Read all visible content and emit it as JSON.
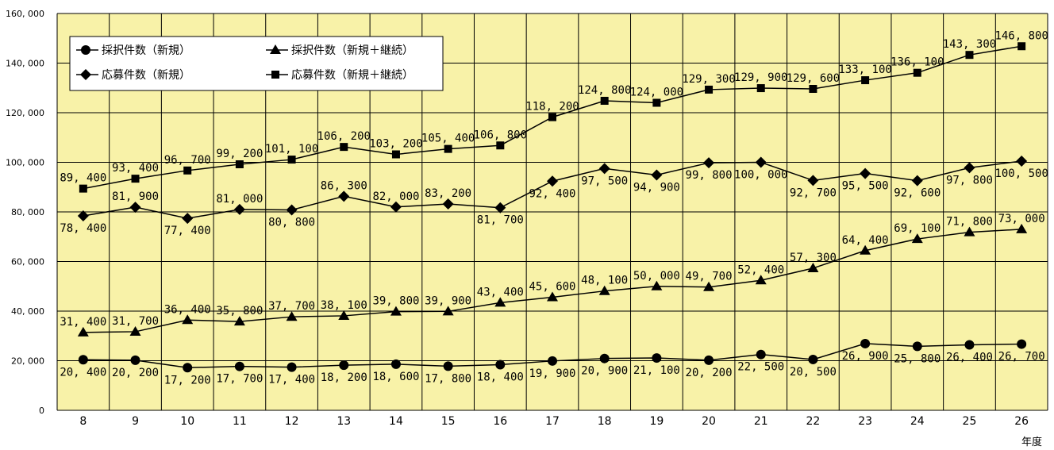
{
  "chart_data": {
    "type": "line",
    "xlabel": "年度",
    "ylabel": "",
    "title": "",
    "ylim": [
      0,
      160000
    ],
    "yticks": [
      "0",
      "20, 000",
      "40, 000",
      "60, 000",
      "80, 000",
      "100, 000",
      "120, 000",
      "140, 000",
      "160, 000"
    ],
    "categories": [
      "8",
      "9",
      "10",
      "11",
      "12",
      "13",
      "14",
      "15",
      "16",
      "17",
      "18",
      "19",
      "20",
      "21",
      "22",
      "23",
      "24",
      "25",
      "26"
    ],
    "grid": true,
    "legend_position": "top-left",
    "colors": {
      "plot_background": "#F8F2A8",
      "grid": "#000000",
      "line": "#000000"
    },
    "series": [
      {
        "name": "採択件数（新規）",
        "marker": "circle",
        "values": [
          20400,
          20200,
          17200,
          17700,
          17400,
          18200,
          18600,
          17800,
          18400,
          19900,
          20900,
          21100,
          20200,
          22500,
          20500,
          26900,
          25800,
          26400,
          26700
        ],
        "labels": [
          "20, 400",
          "20, 200",
          "17, 200",
          "17, 700",
          "17, 400",
          "18, 200",
          "18, 600",
          "17, 800",
          "18, 400",
          "19, 900",
          "20, 900",
          "21, 100",
          "20, 200",
          "22, 500",
          "20, 500",
          "26, 900",
          "25, 800",
          "26, 400",
          "26, 700"
        ]
      },
      {
        "name": "応募件数（新規）",
        "marker": "diamond",
        "values": [
          78400,
          81900,
          77400,
          81000,
          80800,
          86300,
          82000,
          83200,
          81700,
          92400,
          97500,
          94900,
          99800,
          100000,
          92700,
          95500,
          92600,
          97800,
          100500
        ],
        "labels": [
          "78, 400",
          "81, 900",
          "77, 400",
          "81, 000",
          "80, 800",
          "86, 300",
          "82, 000",
          "83, 200",
          "81, 700",
          "92, 400",
          "97, 500",
          "94, 900",
          "99, 800",
          "100, 000",
          "92, 700",
          "95, 500",
          "92, 600",
          "97, 800",
          "100, 500"
        ]
      },
      {
        "name": "採択件数（新規＋継続）",
        "marker": "triangle",
        "values": [
          31400,
          31700,
          36400,
          35800,
          37700,
          38100,
          39800,
          39900,
          43400,
          45600,
          48100,
          50000,
          49700,
          52400,
          57300,
          64400,
          69100,
          71800,
          73000
        ],
        "labels": [
          "31, 400",
          "31, 700",
          "36, 400",
          "35, 800",
          "37, 700",
          "38, 100",
          "39, 800",
          "39, 900",
          "43, 400",
          "45, 600",
          "48, 100",
          "50, 000",
          "49, 700",
          "52, 400",
          "57, 300",
          "64, 400",
          "69, 100",
          "71, 800",
          "73, 000"
        ]
      },
      {
        "name": "応募件数（新規＋継続）",
        "marker": "square",
        "values": [
          89400,
          93400,
          96700,
          99200,
          101100,
          106200,
          103200,
          105400,
          106800,
          118200,
          124800,
          124000,
          129300,
          129900,
          129600,
          133100,
          136100,
          143300,
          146800
        ],
        "labels": [
          "89, 400",
          "93, 400",
          "96, 700",
          "99, 200",
          "101, 100",
          "106, 200",
          "103, 200",
          "105, 400",
          "106, 800",
          "118, 200",
          "124, 800",
          "124, 000",
          "129, 300",
          "129, 900",
          "129, 600",
          "133, 100",
          "136, 100",
          "143, 300",
          "146, 800"
        ]
      }
    ]
  }
}
